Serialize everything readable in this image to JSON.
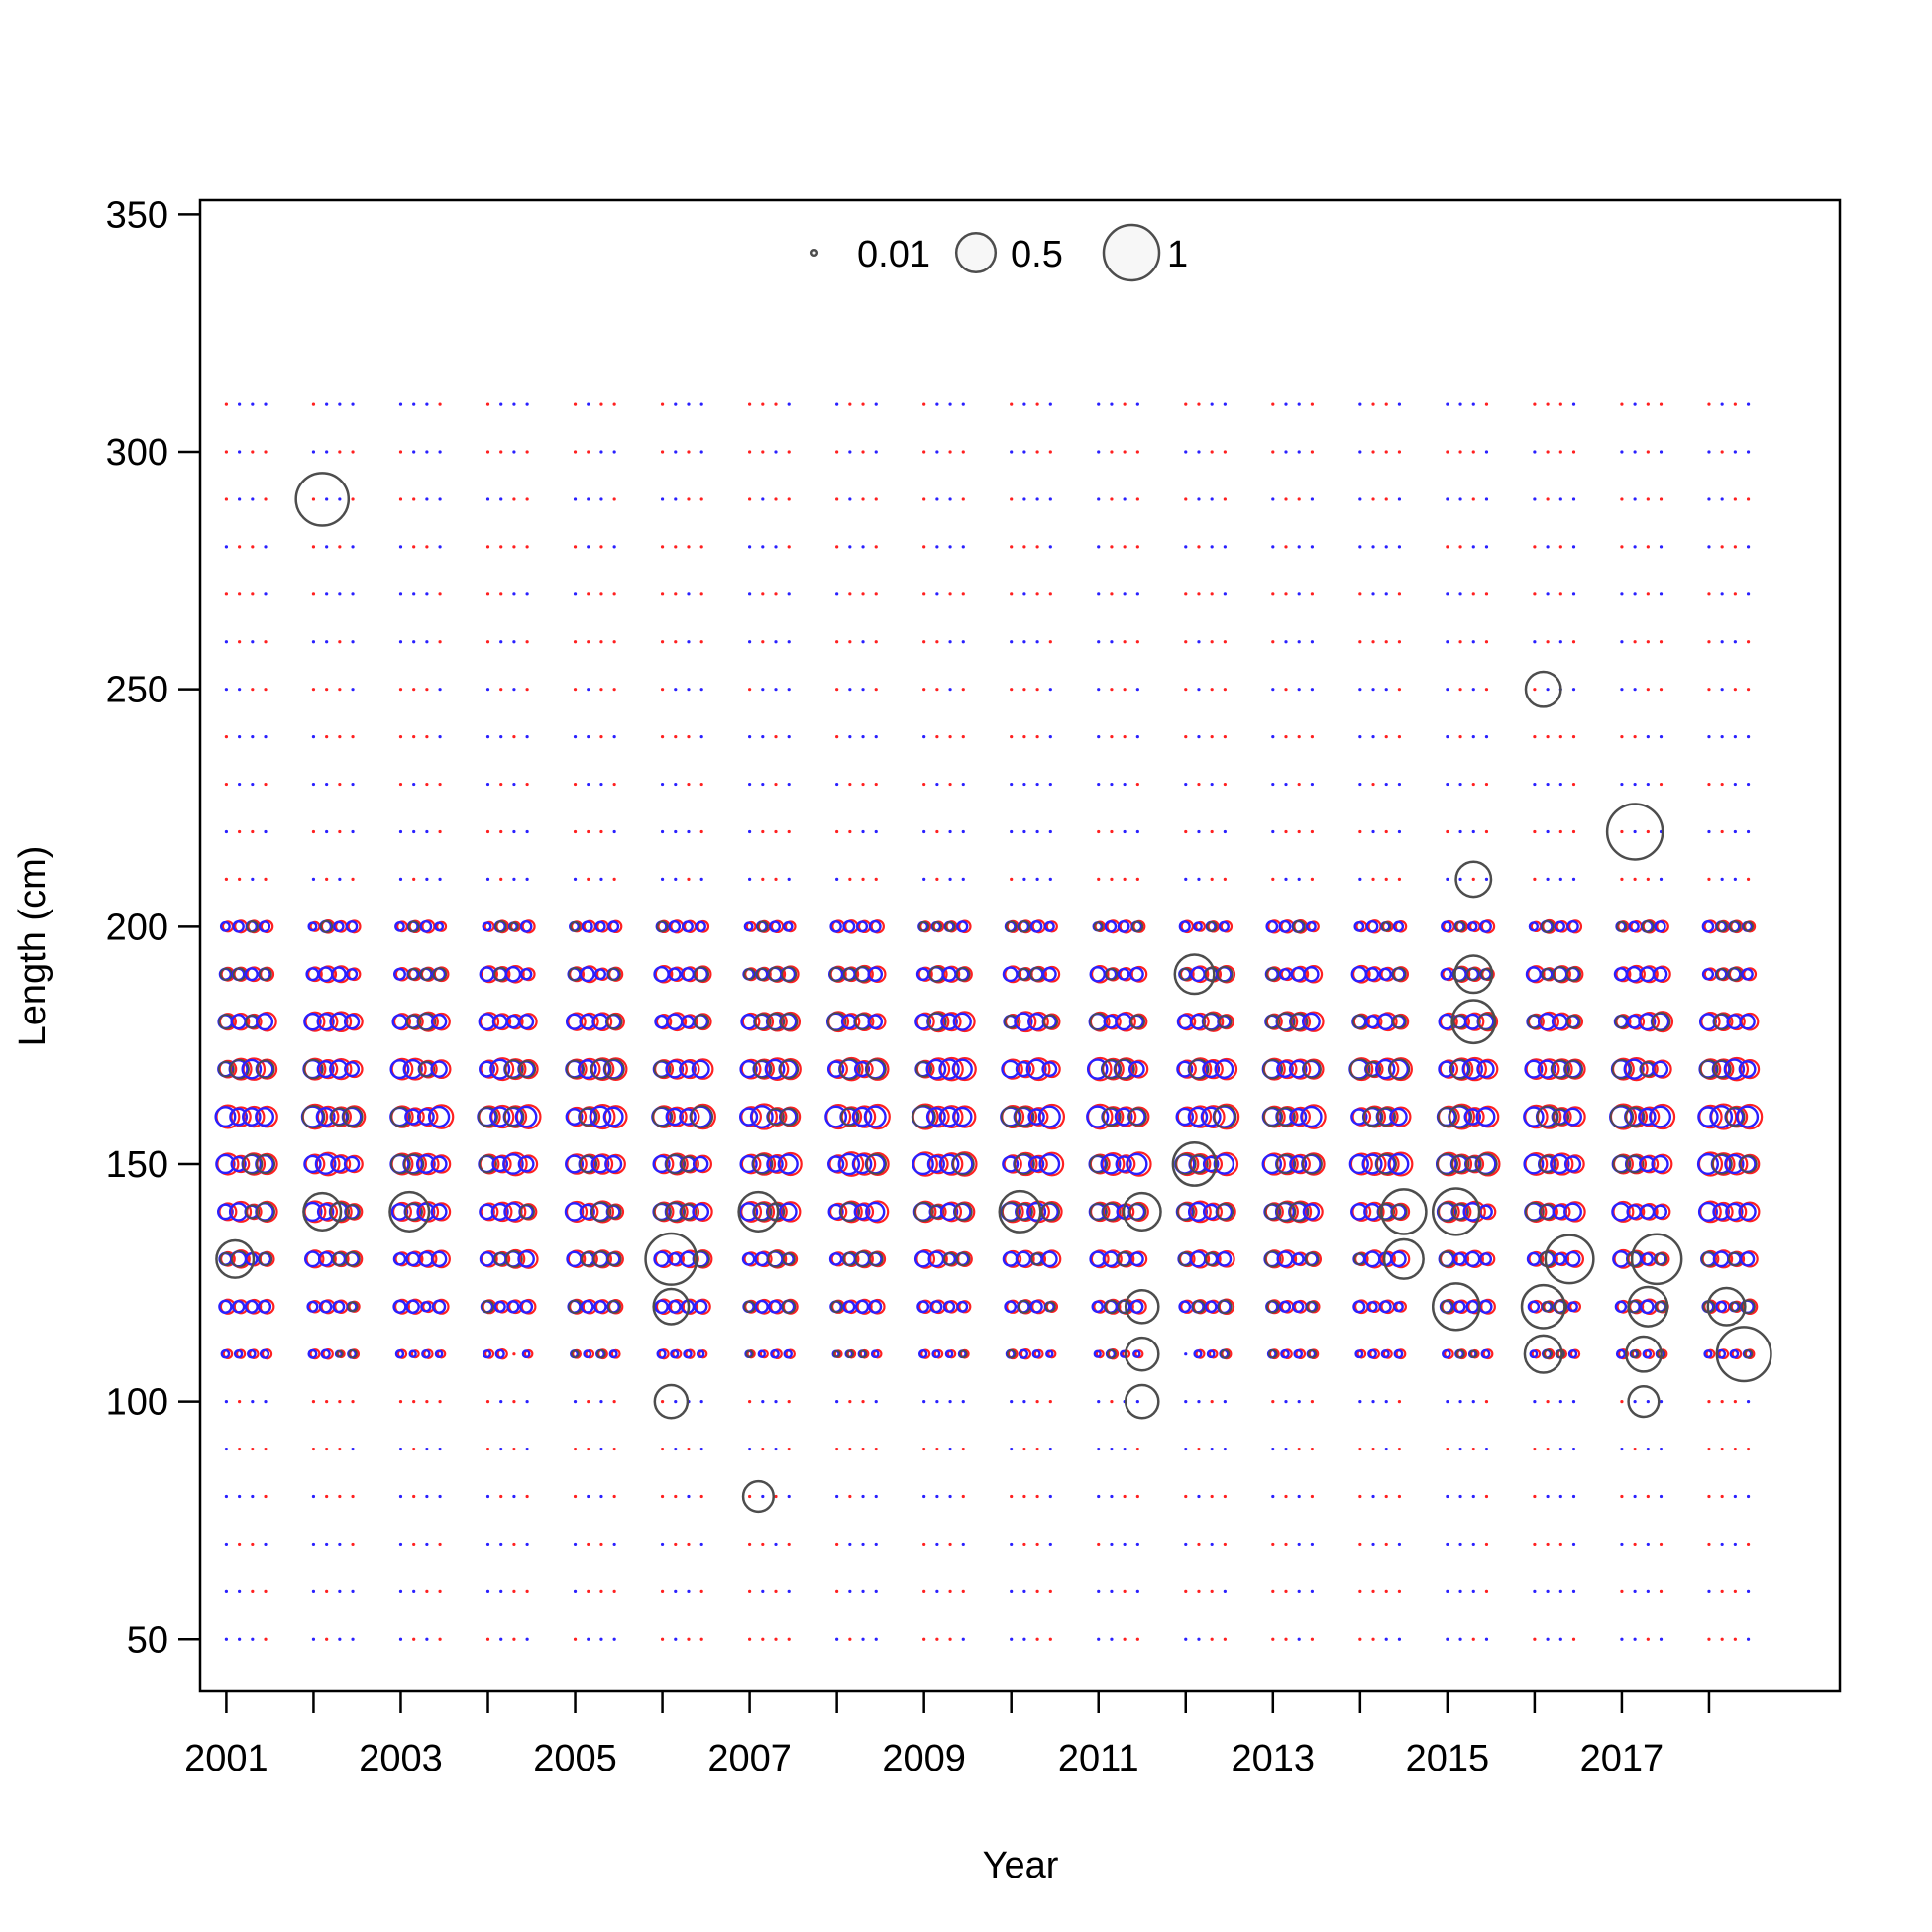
{
  "chart_data": {
    "type": "scatter",
    "subtype": "bubble",
    "xlabel": "Year",
    "ylabel": "Length (cm)",
    "xlim": [
      2000.7,
      2019.5
    ],
    "ylim": [
      39,
      353
    ],
    "x_ticks": [
      2001,
      2002,
      2003,
      2004,
      2005,
      2006,
      2007,
      2008,
      2009,
      2010,
      2011,
      2012,
      2013,
      2014,
      2015,
      2016,
      2017,
      2018
    ],
    "x_tick_labels": [
      "2001",
      "",
      "2003",
      "",
      "2005",
      "",
      "2007",
      "",
      "2009",
      "",
      "2011",
      "",
      "2013",
      "",
      "2015",
      "",
      "2017",
      ""
    ],
    "y_ticks": [
      50,
      100,
      150,
      200,
      250,
      300,
      350
    ],
    "y_tick_labels": [
      "50",
      "100",
      "150",
      "200",
      "250",
      "300",
      "350"
    ],
    "legend": {
      "placement": "top-center",
      "entries": [
        {
          "label": "0.01",
          "value": 0.01
        },
        {
          "label": "0.5",
          "value": 0.5
        },
        {
          "label": "1",
          "value": 1
        }
      ]
    },
    "colors": {
      "residual": "#4d4d4d",
      "observed": "#ff2020",
      "expected": "#2a20ff"
    },
    "grid": false,
    "years": [
      2001,
      2002,
      2003,
      2004,
      2005,
      2006,
      2007,
      2008,
      2009,
      2010,
      2011,
      2012,
      2013,
      2014,
      2015,
      2016,
      2017,
      2018
    ],
    "length_bins": [
      50,
      60,
      70,
      80,
      90,
      100,
      110,
      120,
      130,
      140,
      150,
      160,
      170,
      180,
      190,
      200,
      210,
      220,
      230,
      240,
      250,
      260,
      270,
      280,
      290,
      300,
      310
    ],
    "large_residuals": [
      {
        "x": 2002.1,
        "y": 290,
        "size": 0.9
      },
      {
        "x": 2006.1,
        "y": 130,
        "size": 0.85
      },
      {
        "x": 2012.1,
        "y": 150,
        "size": 0.6
      },
      {
        "x": 2012.1,
        "y": 190,
        "size": 0.5
      },
      {
        "x": 2014.5,
        "y": 140,
        "size": 0.65
      },
      {
        "x": 2014.5,
        "y": 130,
        "size": 0.5
      },
      {
        "x": 2015.1,
        "y": 140,
        "size": 0.7
      },
      {
        "x": 2015.1,
        "y": 120,
        "size": 0.7
      },
      {
        "x": 2015.3,
        "y": 180,
        "size": 0.6
      },
      {
        "x": 2015.3,
        "y": 190,
        "size": 0.45
      },
      {
        "x": 2015.3,
        "y": 210,
        "size": 0.4
      },
      {
        "x": 2016.1,
        "y": 250,
        "size": 0.4
      },
      {
        "x": 2016.1,
        "y": 120,
        "size": 0.6
      },
      {
        "x": 2016.4,
        "y": 130,
        "size": 0.75
      },
      {
        "x": 2017.15,
        "y": 220,
        "size": 1.0
      },
      {
        "x": 2017.4,
        "y": 130,
        "size": 0.8
      },
      {
        "x": 2017.3,
        "y": 120,
        "size": 0.5
      },
      {
        "x": 2018.4,
        "y": 110,
        "size": 0.95
      },
      {
        "x": 2018.2,
        "y": 120,
        "size": 0.45
      },
      {
        "x": 2001.1,
        "y": 130,
        "size": 0.45
      },
      {
        "x": 2002.1,
        "y": 140,
        "size": 0.45
      },
      {
        "x": 2003.1,
        "y": 140,
        "size": 0.5
      },
      {
        "x": 2007.1,
        "y": 140,
        "size": 0.5
      },
      {
        "x": 2010.1,
        "y": 140,
        "size": 0.55
      },
      {
        "x": 2011.5,
        "y": 140,
        "size": 0.45
      },
      {
        "x": 2006.1,
        "y": 120,
        "size": 0.4
      },
      {
        "x": 2006.1,
        "y": 100,
        "size": 0.35
      },
      {
        "x": 2007.1,
        "y": 80,
        "size": 0.3
      },
      {
        "x": 2011.5,
        "y": 120,
        "size": 0.35
      },
      {
        "x": 2011.5,
        "y": 110,
        "size": 0.35
      },
      {
        "x": 2011.5,
        "y": 100,
        "size": 0.35
      },
      {
        "x": 2016.1,
        "y": 110,
        "size": 0.45
      },
      {
        "x": 2017.25,
        "y": 110,
        "size": 0.4
      },
      {
        "x": 2017.25,
        "y": 100,
        "size": 0.3
      }
    ]
  }
}
